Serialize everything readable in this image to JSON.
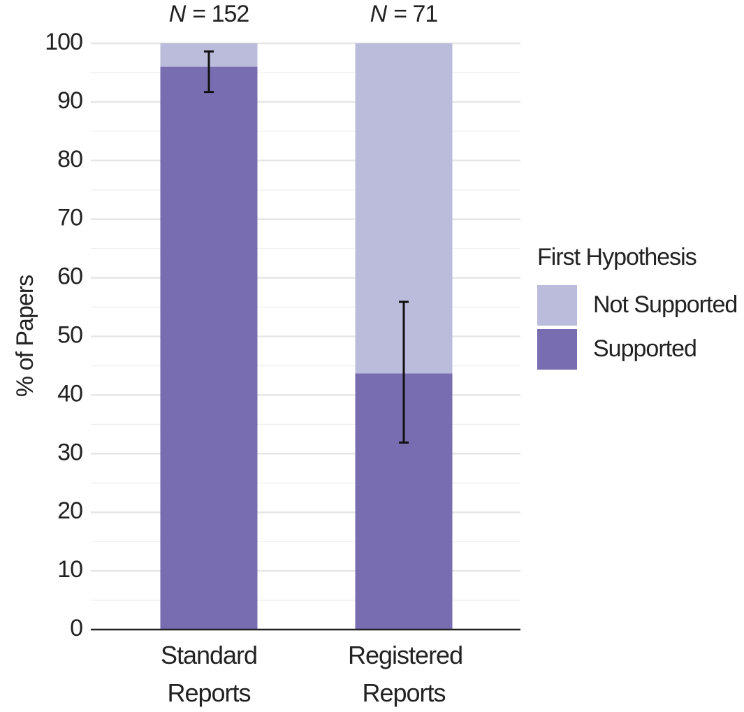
{
  "chart_data": {
    "type": "stacked_bar",
    "categories": [
      "Standard Reports",
      "Registered Reports"
    ],
    "annotations": [
      {
        "symbol": "N",
        "text": "= 152"
      },
      {
        "symbol": "N",
        "text": "= 71"
      }
    ],
    "series": [
      {
        "name": "Supported",
        "color": "#776db0",
        "values": [
          96,
          43.7
        ],
        "ci_low": [
          91.7,
          31.9
        ],
        "ci_high": [
          98.6,
          55.9
        ]
      },
      {
        "name": "Not Supported",
        "color": "#bbbbdc",
        "values": [
          4,
          56.3
        ]
      }
    ],
    "ylabel": "% of Papers",
    "ylim": [
      0,
      100
    ],
    "yticks": [
      0,
      10,
      20,
      30,
      40,
      50,
      60,
      70,
      80,
      90,
      100
    ],
    "minor_yticks": [
      5,
      15,
      25,
      35,
      45,
      55,
      65,
      75,
      85,
      95
    ],
    "grid": true,
    "legend_title": "First Hypothesis",
    "legend_position": "right"
  }
}
